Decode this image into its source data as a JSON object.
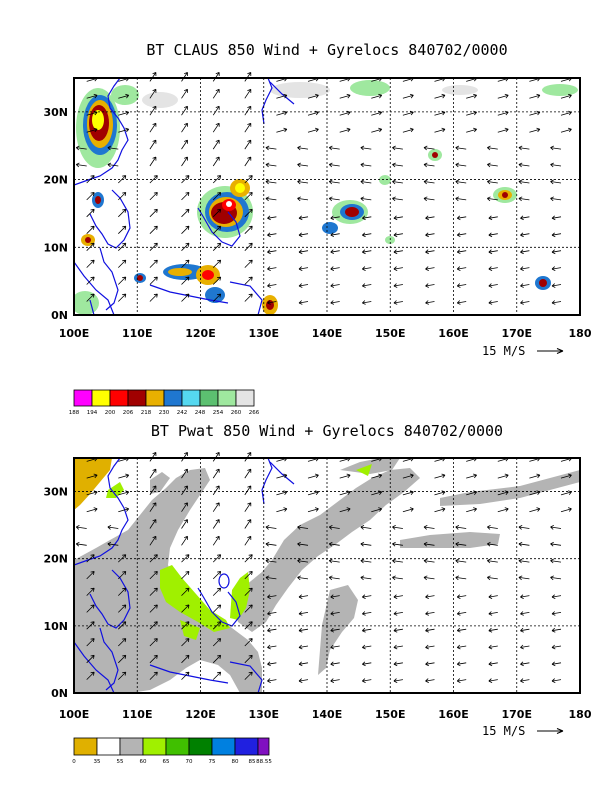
{
  "panels": [
    {
      "title": "BT CLAUS 850 Wind + Gyrelocs 840702/0000",
      "lon_ticks": [
        "100E",
        "110E",
        "120E",
        "130E",
        "140E",
        "150E",
        "160E",
        "170E",
        "180"
      ],
      "lat_ticks": [
        "0N",
        "10N",
        "20N",
        "30N"
      ],
      "vector_scale_label": "15 M/S",
      "colorbar": {
        "colors": [
          "#ff00ff",
          "#ffff00",
          "#ff0000",
          "#a00000",
          "#e8b000",
          "#1f77d0",
          "#55d8f0",
          "#5cc070",
          "#9fe89f",
          "#e4e4e4"
        ],
        "labels": [
          "188",
          "194",
          "200",
          "206",
          "218",
          "230",
          "242",
          "248",
          "254",
          "260",
          "266"
        ]
      }
    },
    {
      "title": "BT Pwat 850 Wind + Gyrelocs 840702/0000",
      "lon_ticks": [
        "100E",
        "110E",
        "120E",
        "130E",
        "140E",
        "150E",
        "160E",
        "170E",
        "180"
      ],
      "lat_ticks": [
        "0N",
        "10N",
        "20N",
        "30N"
      ],
      "vector_scale_label": "15 M/S",
      "colorbar": {
        "colors": [
          "#e0b000",
          "#ffffff",
          "#b4b4b4",
          "#a0f000",
          "#40c000",
          "#008000",
          "#0080e0",
          "#2020e0",
          "#8010c0"
        ],
        "labels": [
          "0",
          "35",
          "55",
          "60",
          "65",
          "70",
          "75",
          "80",
          "85",
          "88.55"
        ]
      }
    }
  ],
  "chart_data": [
    {
      "type": "heatmap",
      "title": "BT CLAUS 850 Wind + Gyrelocs 840702/0000",
      "x_range": [
        100,
        180
      ],
      "y_range": [
        0,
        35
      ],
      "grid": true,
      "colorbar_levels": [
        188,
        194,
        200,
        206,
        218,
        230,
        242,
        248,
        254,
        260,
        266
      ],
      "vector_scale_ms": 15
    },
    {
      "type": "heatmap",
      "title": "BT Pwat 850 Wind + Gyrelocs 840702/0000",
      "x_range": [
        100,
        180
      ],
      "y_range": [
        0,
        35
      ],
      "grid": true,
      "colorbar_levels": [
        0,
        35,
        55,
        60,
        65,
        70,
        75,
        80,
        85,
        88.55
      ],
      "vector_scale_ms": 15
    }
  ]
}
